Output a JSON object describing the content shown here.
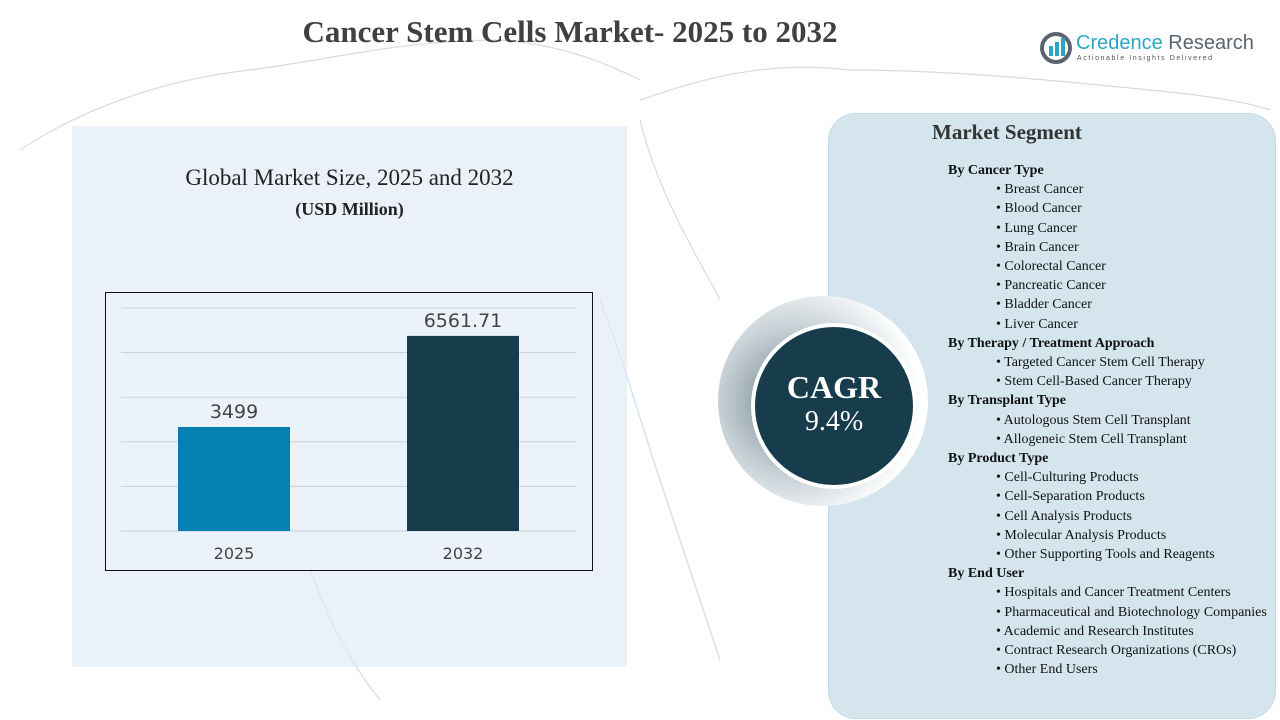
{
  "title": "Cancer Stem Cells Market- 2025 to 2032",
  "logo": {
    "name_a": "Credence",
    "name_b": " Research",
    "tagline": "Actionable Insights Delivered"
  },
  "chart_panel": {
    "subtitle": "Global Market Size, 2025 and 2032",
    "unit": "(USD Million)"
  },
  "chart_data": {
    "type": "bar",
    "categories": [
      "2025",
      "2032"
    ],
    "values": [
      3499,
      6561.71
    ],
    "value_labels": [
      "3499",
      "6561.71"
    ],
    "colors": [
      "#0580b0",
      "#173c4c"
    ],
    "title": "Global Market Size, 2025 and 2032",
    "ylabel": "(USD Million)",
    "ylim": [
      0,
      7500
    ],
    "grid": true
  },
  "cagr": {
    "label": "CAGR",
    "value": "9.4%"
  },
  "segment": {
    "title": "Market Segment",
    "groups": [
      {
        "heading": "By Cancer Type",
        "items": [
          "• Breast Cancer",
          "• Blood Cancer",
          "• Lung Cancer",
          "• Brain Cancer",
          "• Colorectal Cancer",
          "• Pancreatic Cancer",
          "• Bladder Cancer",
          "• Liver Cancer"
        ]
      },
      {
        "heading": "By Therapy / Treatment Approach",
        "items": [
          "• Targeted Cancer Stem Cell Therapy",
          "• Stem Cell-Based Cancer Therapy"
        ]
      },
      {
        "heading": "By Transplant Type",
        "items": [
          "• Autologous Stem Cell Transplant",
          "• Allogeneic Stem Cell Transplant"
        ]
      },
      {
        "heading": "By Product Type",
        "items": [
          "• Cell-Culturing Products",
          "• Cell-Separation Products",
          "• Cell Analysis Products",
          "• Molecular Analysis Products",
          "• Other Supporting Tools and Reagents"
        ]
      },
      {
        "heading": "By End User",
        "items": [
          "• Hospitals and Cancer Treatment Centers",
          "• Pharmaceutical and Biotechnology Companies",
          "• Academic and Research Institutes",
          "• Contract Research Organizations (CROs)",
          "• Other End Users"
        ]
      }
    ]
  }
}
